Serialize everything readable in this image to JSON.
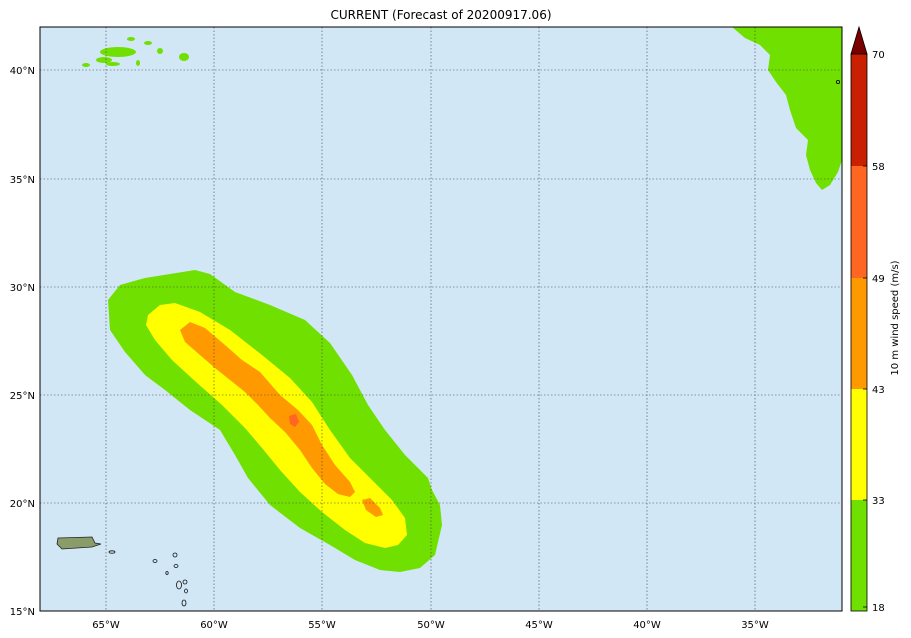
{
  "title": "CURRENT (Forecast of 20200917.06)",
  "map": {
    "lon_labels": [
      "65°W",
      "60°W",
      "55°W",
      "50°W",
      "45°W",
      "40°W",
      "35°W"
    ],
    "lat_labels": [
      "40°N",
      "35°N",
      "30°N",
      "25°N",
      "20°N",
      "15°N"
    ],
    "lon_range": [
      -68,
      -31
    ],
    "lat_range": [
      15,
      42
    ],
    "ocean_color": "#d1e7f5"
  },
  "colorbar": {
    "label": "10 m wind speed (m/s)",
    "ticks": [
      "18",
      "33",
      "43",
      "49",
      "58",
      "70"
    ],
    "colors": {
      "18-33": "#70e000",
      "33-43": "#ffff00",
      "43-49": "#ff9900",
      "49-58": "#ff6622",
      "58-70": "#c82000",
      "extend": "#7a0000"
    }
  }
}
